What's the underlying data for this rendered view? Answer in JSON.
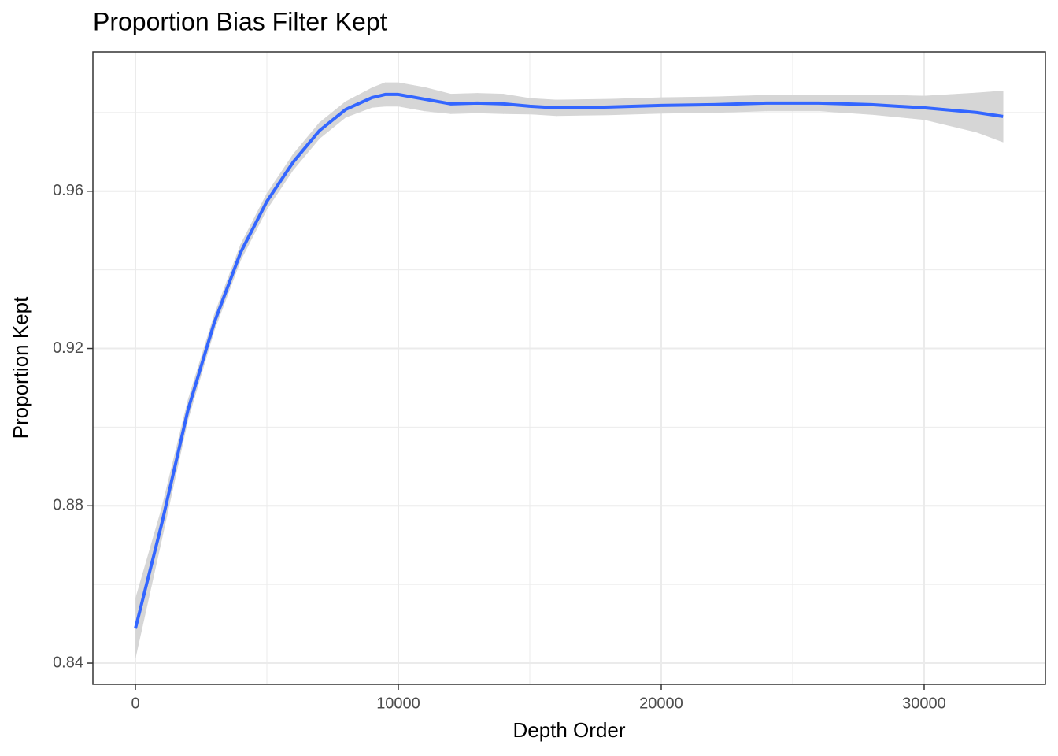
{
  "chart_data": {
    "type": "line",
    "title": "Proportion Bias Filter Kept",
    "x_label": "Depth Order",
    "y_label": "Proportion Kept",
    "x": [
      0,
      1000,
      2000,
      3000,
      4000,
      5000,
      6000,
      7000,
      8000,
      9000,
      9500,
      10000,
      11000,
      12000,
      13000,
      14000,
      15000,
      16000,
      18000,
      20000,
      22000,
      24000,
      26000,
      28000,
      30000,
      32000,
      33000
    ],
    "series": [
      {
        "color": "#3366ff",
        "values": [
          0.8488,
          0.8754,
          0.9044,
          0.9266,
          0.9444,
          0.9574,
          0.9674,
          0.9754,
          0.9808,
          0.9838,
          0.9846,
          0.9846,
          0.9834,
          0.9822,
          0.9824,
          0.9822,
          0.9816,
          0.9812,
          0.9814,
          0.9818,
          0.982,
          0.9824,
          0.9824,
          0.982,
          0.9812,
          0.98,
          0.979
        ],
        "band_color": "#d6d6d6",
        "upper": [
          0.8563,
          0.8794,
          0.9069,
          0.9286,
          0.9464,
          0.9594,
          0.9694,
          0.9774,
          0.9828,
          0.9863,
          0.9876,
          0.9876,
          0.9864,
          0.9847,
          0.9849,
          0.9847,
          0.9836,
          0.9832,
          0.9834,
          0.9838,
          0.984,
          0.9844,
          0.9844,
          0.9845,
          0.9842,
          0.985,
          0.9855
        ],
        "lower": [
          0.8413,
          0.8714,
          0.9019,
          0.9246,
          0.9424,
          0.9554,
          0.9654,
          0.9734,
          0.9788,
          0.9813,
          0.9816,
          0.9816,
          0.9804,
          0.9797,
          0.9799,
          0.9797,
          0.9796,
          0.9792,
          0.9794,
          0.9798,
          0.98,
          0.9804,
          0.9804,
          0.9795,
          0.9782,
          0.975,
          0.9725
        ]
      }
    ],
    "xlim": [
      -1617,
      34611
    ],
    "ylim": [
      0.8346,
      0.9954
    ],
    "xticks": [
      0,
      10000,
      20000,
      30000
    ],
    "yticks": [
      0.84,
      0.88,
      0.92,
      0.96
    ],
    "grid": true,
    "minor_grid": true
  }
}
